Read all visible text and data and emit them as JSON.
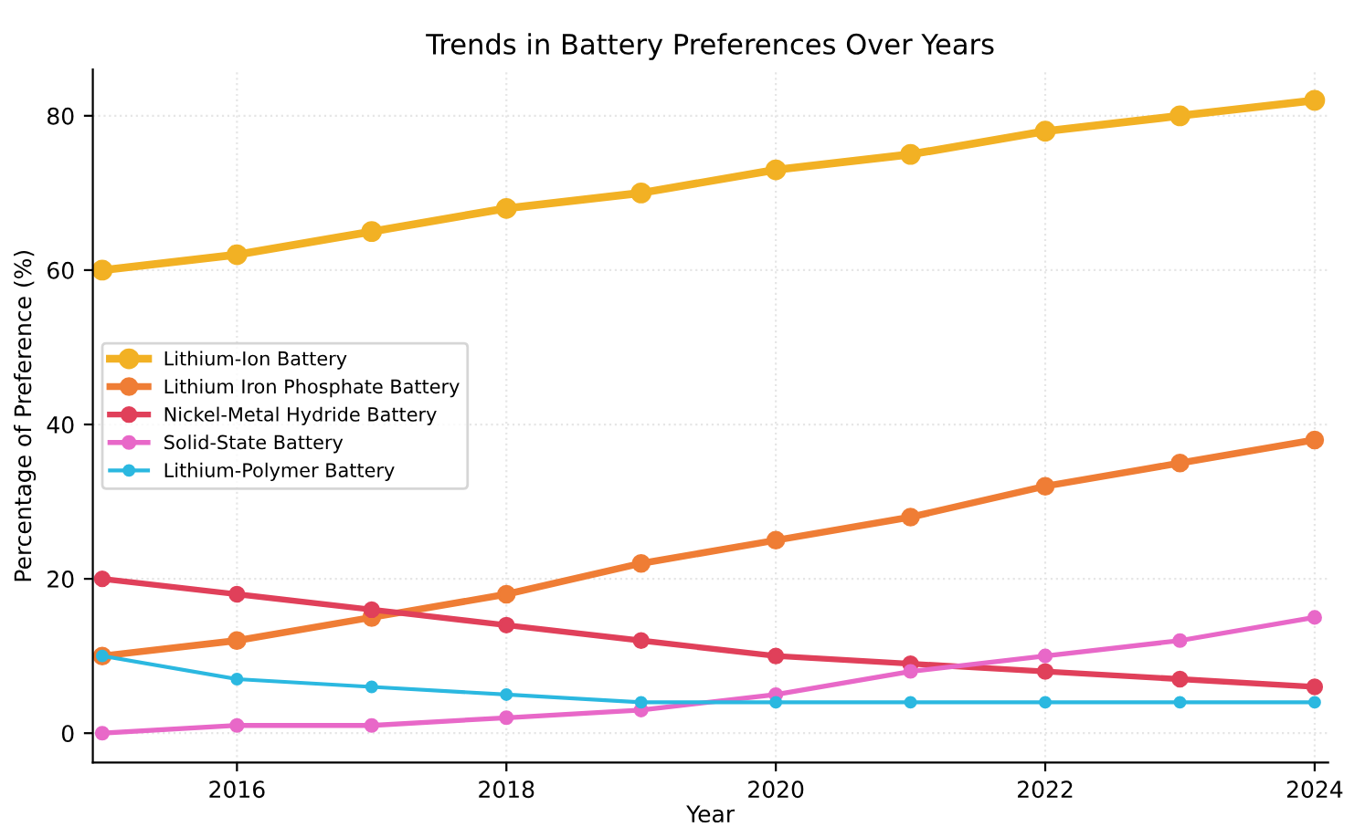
{
  "chart_data": {
    "type": "line",
    "title": "Trends in Battery Preferences Over Years",
    "xlabel": "Year",
    "ylabel": "Percentage of Preference (%)",
    "x": [
      2015,
      2016,
      2017,
      2018,
      2019,
      2020,
      2021,
      2022,
      2023,
      2024
    ],
    "series": [
      {
        "name": "Lithium-Ion Battery",
        "color": "#f2b124",
        "values": [
          60,
          62,
          65,
          68,
          70,
          73,
          75,
          78,
          80,
          82
        ]
      },
      {
        "name": "Lithium Iron Phosphate Battery",
        "color": "#ef7d35",
        "values": [
          10,
          12,
          15,
          18,
          22,
          25,
          28,
          32,
          35,
          38
        ]
      },
      {
        "name": "Nickel-Metal Hydride Battery",
        "color": "#e0405a",
        "values": [
          20,
          18,
          16,
          14,
          12,
          10,
          9,
          8,
          7,
          6
        ]
      },
      {
        "name": "Solid-State Battery",
        "color": "#e868c8",
        "values": [
          0,
          1,
          1,
          2,
          3,
          5,
          8,
          10,
          12,
          15
        ]
      },
      {
        "name": "Lithium-Polymer Battery",
        "color": "#2bb8e0",
        "values": [
          10,
          7,
          6,
          5,
          4,
          4,
          4,
          4,
          4,
          4
        ]
      }
    ],
    "xlim": [
      2014.93,
      2024.1
    ],
    "ylim": [
      -3.8,
      86
    ],
    "xticks": [
      2016,
      2018,
      2020,
      2022,
      2024
    ],
    "yticks": [
      0,
      20,
      40,
      60,
      80
    ],
    "grid": true,
    "legend": "left",
    "marker": "circle",
    "line_style": "solid"
  }
}
